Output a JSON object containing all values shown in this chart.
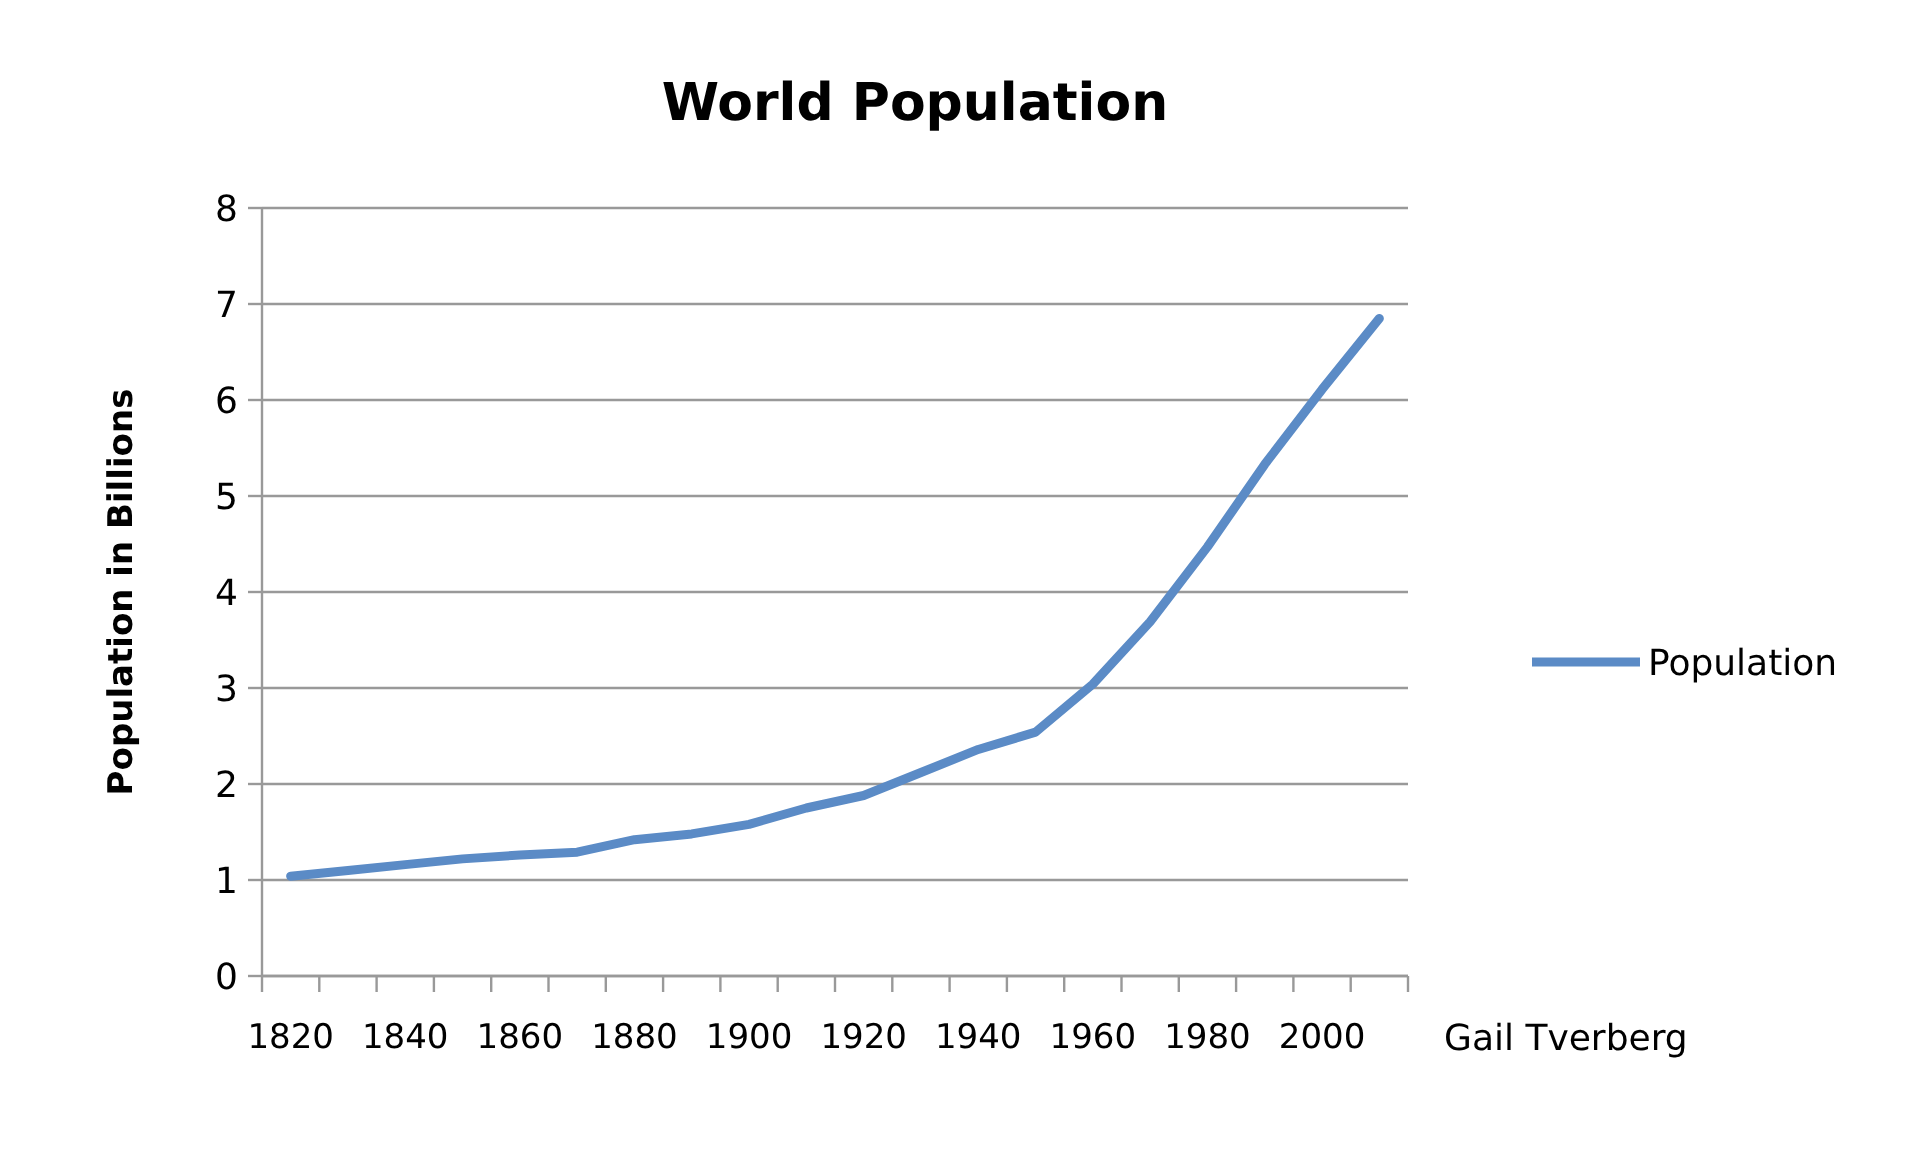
{
  "chart_data": {
    "type": "line",
    "title": "World Population",
    "ylabel": "Population in Billions",
    "categories": [
      "1820",
      null,
      "1840",
      null,
      "1860",
      null,
      "1880",
      null,
      "1900",
      null,
      "1920",
      null,
      "1940",
      null,
      "1960",
      null,
      "1980",
      null,
      "2000",
      null
    ],
    "series": [
      {
        "name": "Population",
        "color": "#5b8bc6",
        "values": [
          1.04,
          1.1,
          1.16,
          1.22,
          1.26,
          1.29,
          1.42,
          1.48,
          1.58,
          1.75,
          1.88,
          2.12,
          2.36,
          2.54,
          3.04,
          3.69,
          4.47,
          5.33,
          6.11,
          6.85
        ]
      }
    ],
    "ylim": [
      0,
      8
    ],
    "yticks": [
      0,
      1,
      2,
      3,
      4,
      5,
      6,
      7,
      8
    ],
    "grid": "y",
    "legend": "right",
    "marker": "none",
    "line_style": "solid",
    "annotations": [
      "Gail Tverberg"
    ]
  }
}
